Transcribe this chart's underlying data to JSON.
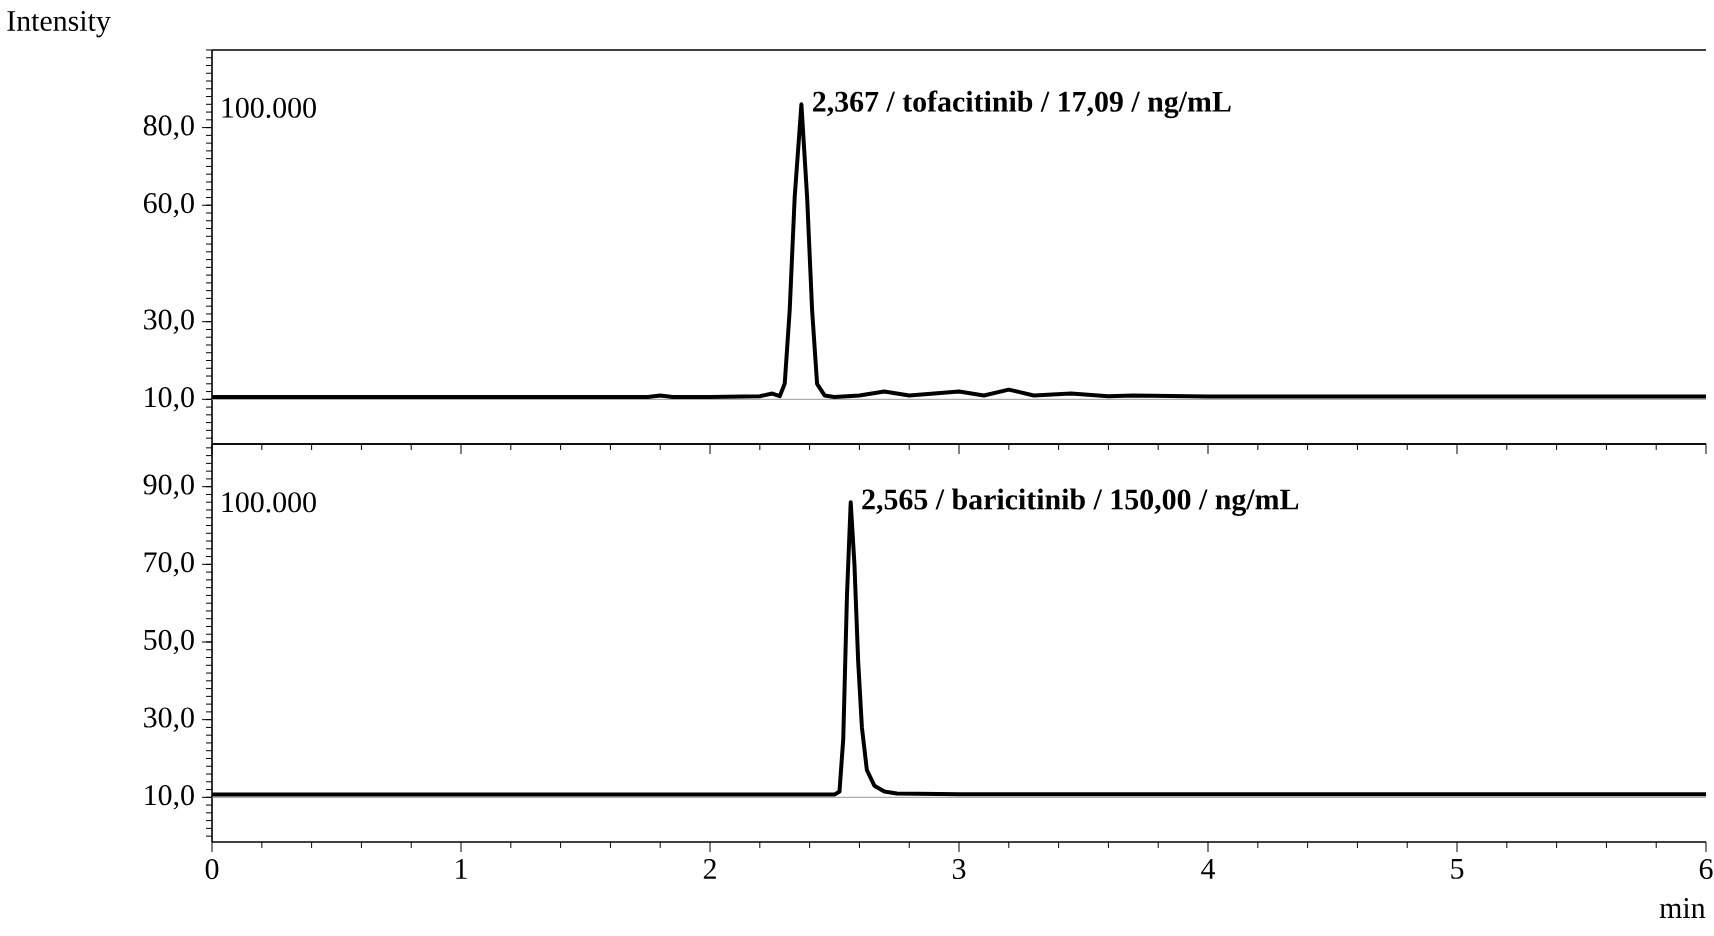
{
  "chart_data": [
    {
      "type": "line",
      "ylabel": "Intensity",
      "xlim": [
        0,
        6
      ],
      "xticks": [
        0,
        1,
        2,
        3,
        4,
        5,
        6
      ],
      "ylim": [
        -1.5,
        100
      ],
      "yticks": [
        {
          "value": 10,
          "label": "10,0"
        },
        {
          "value": 30,
          "label": "30,0"
        },
        {
          "value": 60,
          "label": "60,0"
        },
        {
          "value": 80,
          "label": "80,0"
        }
      ],
      "tick_labels": "y",
      "series": [
        {
          "color": "#000000",
          "x": [
            0,
            0.5,
            1.0,
            1.5,
            1.75,
            1.8,
            1.85,
            2.0,
            2.2,
            2.25,
            2.28,
            2.3,
            2.32,
            2.34,
            2.367,
            2.39,
            2.41,
            2.43,
            2.46,
            2.5,
            2.6,
            2.7,
            2.8,
            2.9,
            3.0,
            3.1,
            3.2,
            3.3,
            3.45,
            3.6,
            3.7,
            4.0,
            5.0,
            6.0
          ],
          "values": [
            10.6,
            10.6,
            10.6,
            10.6,
            10.6,
            11.0,
            10.6,
            10.6,
            10.8,
            11.5,
            10.8,
            14,
            33,
            62,
            86,
            62,
            33,
            14,
            11,
            10.6,
            11.0,
            12.0,
            11.0,
            11.5,
            12.0,
            11.0,
            12.5,
            11.0,
            11.5,
            10.8,
            11.0,
            10.7,
            10.7,
            10.7
          ]
        }
      ],
      "ref_lines": [
        {
          "axis": "y",
          "value": 10,
          "color": "#999999"
        }
      ],
      "annotations": [
        "100.000",
        {
          "text": "2,367 / tofacitinib / 17,09 / ng/mL",
          "x": 2.367,
          "y": 86
        }
      ]
    },
    {
      "type": "line",
      "xlabel": "min",
      "xlim": [
        0,
        6
      ],
      "xticks": [
        0,
        1,
        2,
        3,
        4,
        5,
        6
      ],
      "ylim": [
        -1.5,
        101
      ],
      "yticks": [
        {
          "value": 10,
          "label": "10,0"
        },
        {
          "value": 30,
          "label": "30,0"
        },
        {
          "value": 50,
          "label": "50,0"
        },
        {
          "value": 70,
          "label": "70,0"
        },
        {
          "value": 90,
          "label": "90,0"
        }
      ],
      "series": [
        {
          "color": "#000000",
          "x": [
            0,
            1.0,
            2.0,
            2.5,
            2.52,
            2.535,
            2.55,
            2.565,
            2.58,
            2.595,
            2.61,
            2.63,
            2.66,
            2.7,
            2.75,
            3.0,
            4.0,
            5.0,
            6.0
          ],
          "values": [
            10.7,
            10.7,
            10.7,
            10.7,
            11.5,
            25,
            62,
            86,
            70,
            45,
            28,
            17,
            13,
            11.5,
            11.0,
            10.8,
            10.8,
            10.8,
            10.8
          ]
        }
      ],
      "ref_lines": [
        {
          "axis": "y",
          "value": 10,
          "color": "#999999"
        }
      ],
      "annotations": [
        "100.000",
        {
          "text": "2,565 / baricitinib / 150,00 / ng/mL",
          "x": 2.565,
          "y": 86
        }
      ]
    }
  ]
}
